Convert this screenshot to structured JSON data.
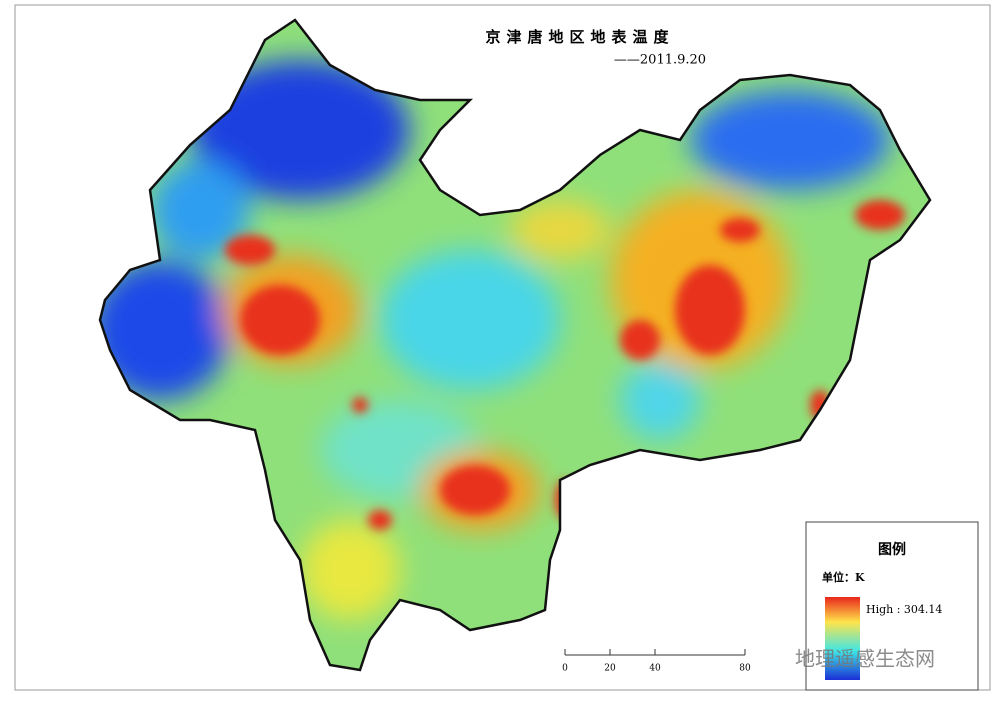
{
  "title": "京津唐地区地表温度",
  "date": "——2011.9.20",
  "legend": {
    "title": "图例",
    "unit": "单位：K",
    "high": "High : 304.14"
  },
  "scale_bar": {
    "ticks": [
      0,
      20,
      40,
      80
    ]
  },
  "watermark": "地理遥感生态网"
}
